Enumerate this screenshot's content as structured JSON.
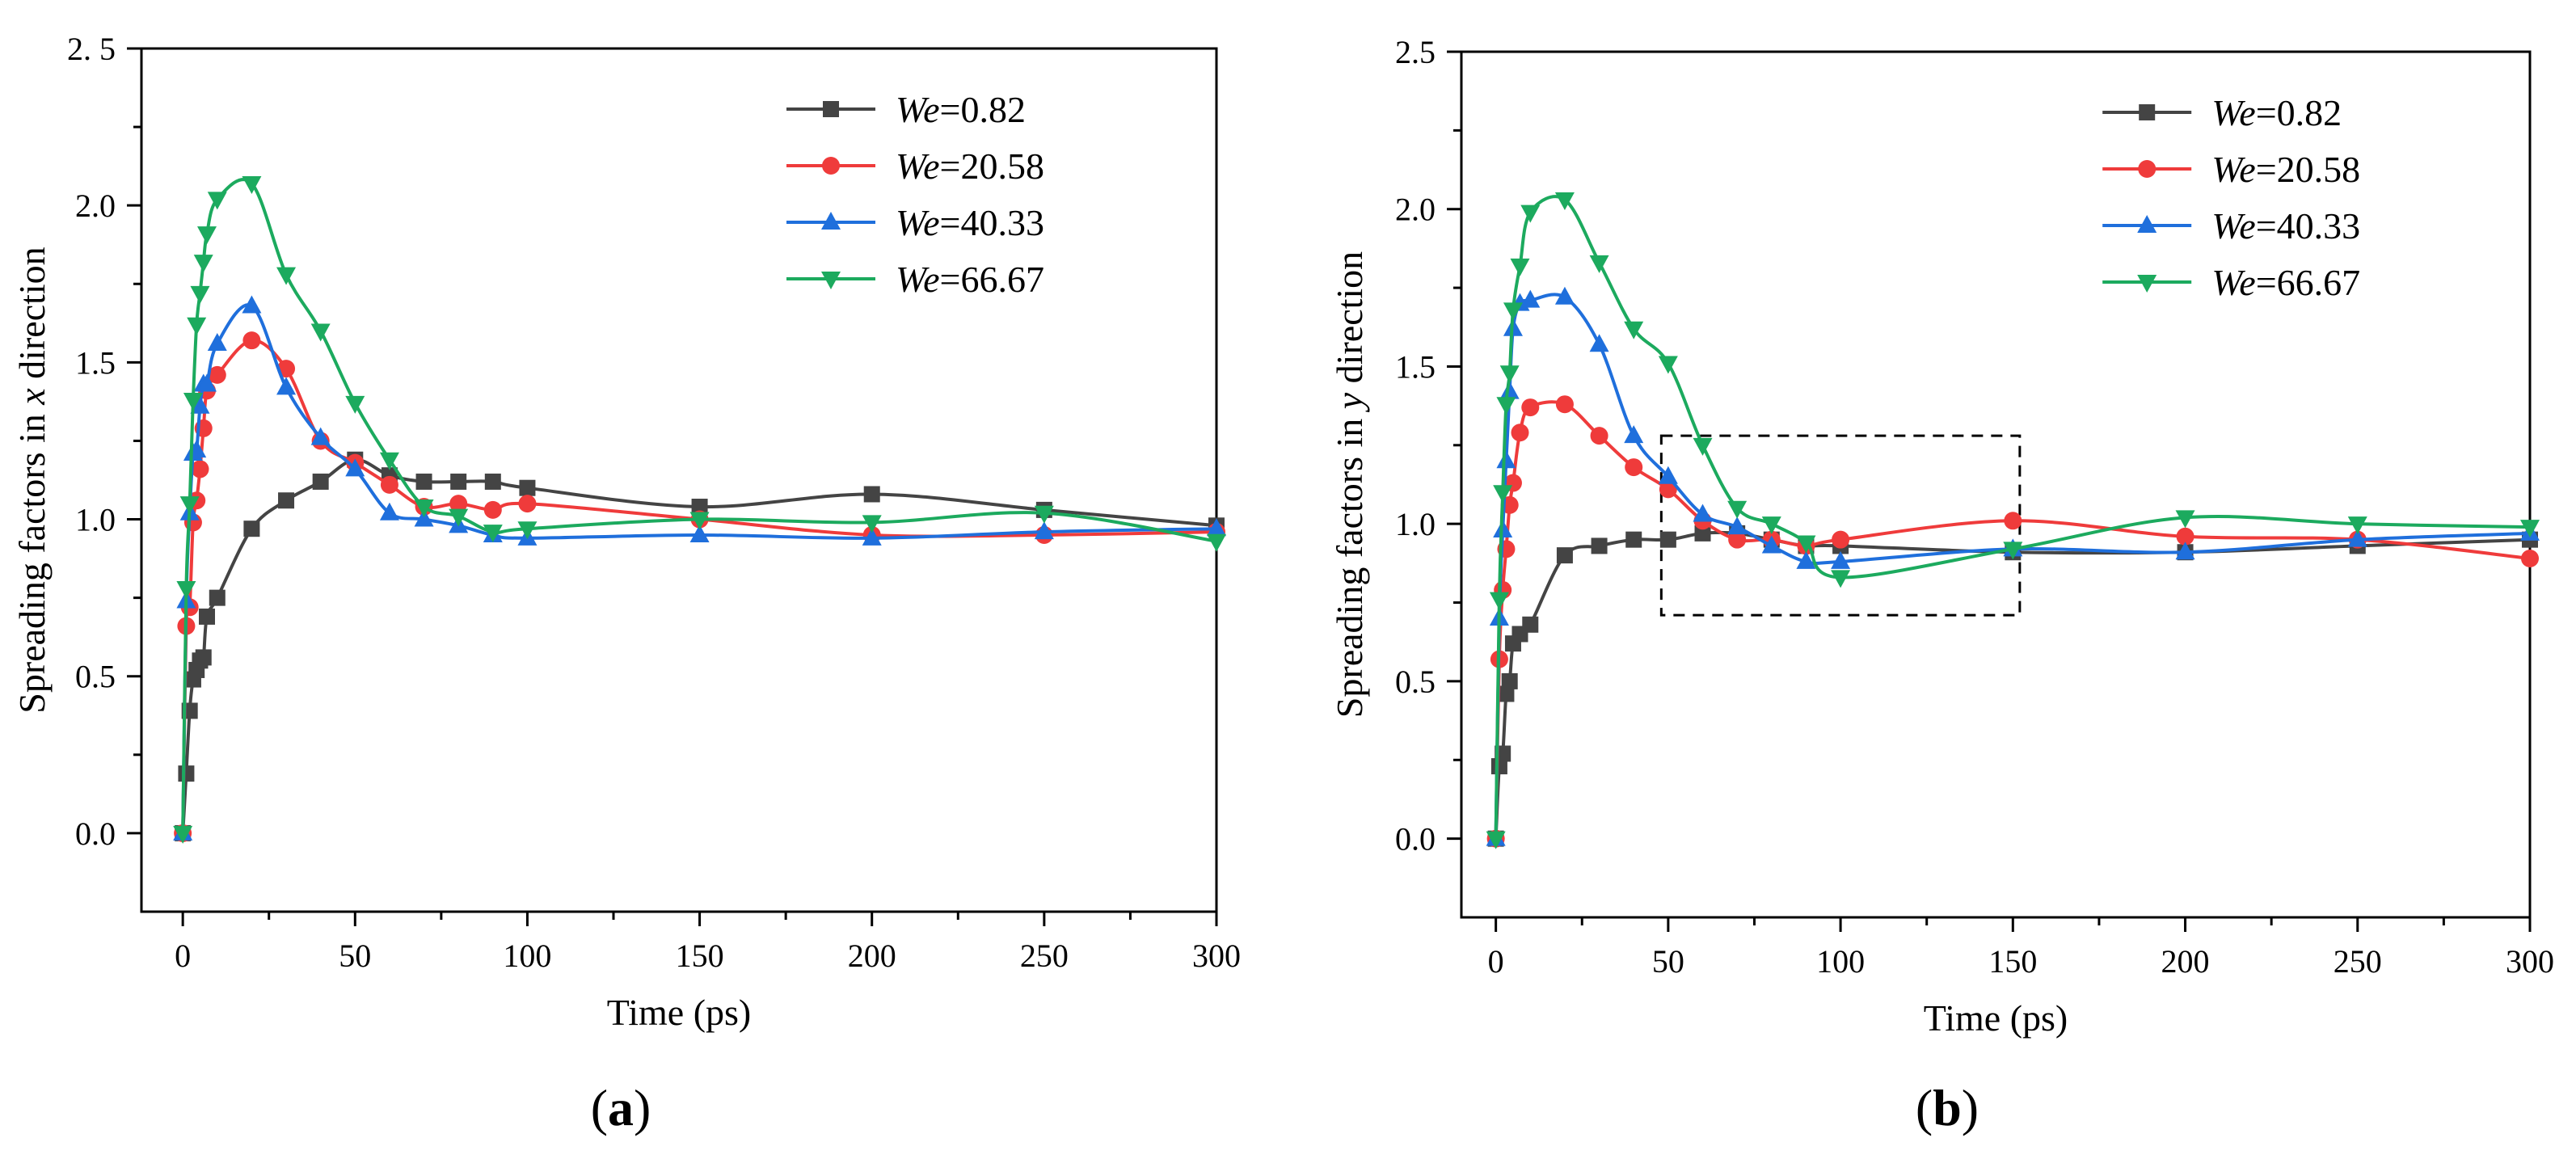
{
  "chart_data": [
    {
      "id": "a",
      "type": "line",
      "panel_label": "a",
      "xlabel": "Time (ps)",
      "ylabel_parts": [
        "Spreading factors in ",
        "x",
        " direction"
      ],
      "xlim": [
        -12,
        300
      ],
      "ylim": [
        -0.25,
        2.5
      ],
      "xticks": [
        0,
        50,
        100,
        150,
        200,
        250,
        300
      ],
      "yticks": [
        0.0,
        0.5,
        1.0,
        1.5,
        2.0,
        2.5
      ],
      "xtick_labels": [
        "0",
        "50",
        "100",
        "150",
        "200",
        "250",
        "300"
      ],
      "ytick_labels": [
        "0.0",
        "0.5",
        "1.0",
        "1.5",
        "2.0",
        "2. 5"
      ],
      "legend_position": "top-right",
      "series": [
        {
          "name_prefix": "We",
          "name_value": "=0.82",
          "color": "#444444",
          "marker": "square",
          "x": [
            0,
            1,
            2,
            3,
            4,
            5,
            6,
            7,
            10,
            20,
            30,
            40,
            50,
            60,
            70,
            80,
            90,
            100,
            150,
            200,
            250,
            300
          ],
          "y": [
            0.0,
            0.19,
            0.39,
            0.49,
            0.52,
            0.55,
            0.56,
            0.69,
            0.75,
            0.97,
            1.06,
            1.12,
            1.19,
            1.14,
            1.12,
            1.12,
            1.12,
            1.1,
            1.04,
            1.08,
            1.03,
            0.98
          ]
        },
        {
          "name_prefix": "We",
          "name_value": "=20.58",
          "color": "#ef3b3b",
          "marker": "circle",
          "x": [
            0,
            1,
            2,
            3,
            4,
            5,
            6,
            7,
            10,
            20,
            30,
            40,
            50,
            60,
            70,
            80,
            90,
            100,
            150,
            200,
            250,
            300
          ],
          "y": [
            0.0,
            0.66,
            0.72,
            0.99,
            1.06,
            1.16,
            1.29,
            1.41,
            1.46,
            1.57,
            1.48,
            1.25,
            1.18,
            1.11,
            1.04,
            1.05,
            1.03,
            1.05,
            1.0,
            0.95,
            0.95,
            0.96
          ]
        },
        {
          "name_prefix": "We",
          "name_value": "=40.33",
          "color": "#1f6fdc",
          "marker": "triangle-up",
          "x": [
            0,
            1,
            2,
            3,
            4,
            5,
            6,
            7,
            10,
            20,
            30,
            40,
            50,
            60,
            70,
            80,
            90,
            100,
            150,
            200,
            250,
            300
          ],
          "y": [
            0.0,
            0.74,
            1.02,
            1.21,
            1.22,
            1.36,
            1.43,
            1.43,
            1.56,
            1.68,
            1.42,
            1.26,
            1.16,
            1.02,
            1.0,
            0.98,
            0.95,
            0.94,
            0.95,
            0.94,
            0.96,
            0.97
          ]
        },
        {
          "name_prefix": "We",
          "name_value": "=66.67",
          "color": "#1caa5e",
          "marker": "triangle-down",
          "x": [
            0,
            1,
            2,
            3,
            4,
            5,
            6,
            7,
            10,
            20,
            30,
            40,
            50,
            60,
            70,
            80,
            90,
            100,
            150,
            200,
            250,
            300
          ],
          "y": [
            0.0,
            0.78,
            1.05,
            1.38,
            1.62,
            1.72,
            1.82,
            1.91,
            2.02,
            2.07,
            1.78,
            1.6,
            1.37,
            1.19,
            1.04,
            1.01,
            0.96,
            0.97,
            1.0,
            0.99,
            1.02,
            0.93
          ]
        }
      ]
    },
    {
      "id": "b",
      "type": "line",
      "panel_label": "b",
      "xlabel": "Time (ps)",
      "ylabel_parts": [
        "Spreading factors in ",
        "y",
        " direction"
      ],
      "xlim": [
        -10,
        300
      ],
      "ylim": [
        -0.25,
        2.5
      ],
      "xticks": [
        0,
        50,
        100,
        150,
        200,
        250,
        300
      ],
      "yticks": [
        0.0,
        0.5,
        1.0,
        1.5,
        2.0,
        2.5
      ],
      "xtick_labels": [
        "0",
        "50",
        "100",
        "150",
        "200",
        "250",
        "300"
      ],
      "ytick_labels": [
        "0.0",
        "0.5",
        "1.0",
        "1.5",
        "2.0",
        "2.5"
      ],
      "legend_position": "top-right",
      "annotation": {
        "type": "dashed-box",
        "x_range": [
          48,
          152
        ],
        "y_range": [
          0.71,
          1.28
        ]
      },
      "series": [
        {
          "name_prefix": "We",
          "name_value": "=0.82",
          "color": "#444444",
          "marker": "square",
          "x": [
            0,
            1,
            2,
            3,
            4,
            5,
            7,
            10,
            20,
            30,
            40,
            50,
            60,
            70,
            80,
            90,
            100,
            150,
            200,
            250,
            300
          ],
          "y": [
            0.0,
            0.23,
            0.27,
            0.46,
            0.5,
            0.62,
            0.65,
            0.68,
            0.9,
            0.93,
            0.95,
            0.95,
            0.97,
            0.97,
            0.95,
            0.93,
            0.93,
            0.91,
            0.91,
            0.93,
            0.95
          ]
        },
        {
          "name_prefix": "We",
          "name_value": "=20.58",
          "color": "#ef3b3b",
          "marker": "circle",
          "x": [
            0,
            1,
            2,
            3,
            4,
            5,
            7,
            10,
            20,
            30,
            40,
            50,
            60,
            70,
            80,
            90,
            100,
            150,
            200,
            250,
            300
          ],
          "y": [
            0.0,
            0.57,
            0.79,
            0.92,
            1.06,
            1.13,
            1.29,
            1.37,
            1.38,
            1.28,
            1.18,
            1.11,
            1.01,
            0.95,
            0.95,
            0.93,
            0.95,
            1.01,
            0.96,
            0.95,
            0.89
          ]
        },
        {
          "name_prefix": "We",
          "name_value": "=40.33",
          "color": "#1f6fdc",
          "marker": "triangle-up",
          "x": [
            0,
            1,
            2,
            3,
            4,
            5,
            7,
            10,
            20,
            30,
            40,
            50,
            60,
            70,
            80,
            90,
            100,
            150,
            200,
            250,
            300
          ],
          "y": [
            0.0,
            0.7,
            0.98,
            1.2,
            1.42,
            1.62,
            1.7,
            1.71,
            1.72,
            1.57,
            1.28,
            1.15,
            1.03,
            0.99,
            0.93,
            0.88,
            0.88,
            0.92,
            0.91,
            0.95,
            0.97
          ]
        },
        {
          "name_prefix": "We",
          "name_value": "=66.67",
          "color": "#1caa5e",
          "marker": "triangle-down",
          "x": [
            0,
            1,
            2,
            3,
            4,
            5,
            7,
            10,
            20,
            30,
            40,
            50,
            60,
            70,
            80,
            90,
            100,
            150,
            200,
            250,
            300
          ],
          "y": [
            0.0,
            0.76,
            1.1,
            1.38,
            1.48,
            1.68,
            1.82,
            1.99,
            2.03,
            1.83,
            1.62,
            1.51,
            1.25,
            1.05,
            1.0,
            0.94,
            0.83,
            0.92,
            1.02,
            1.0,
            0.99
          ]
        }
      ]
    }
  ]
}
